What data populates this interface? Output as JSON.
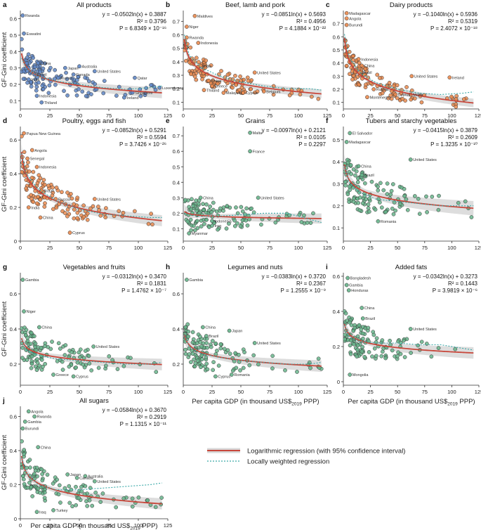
{
  "figure": {
    "ylabel": "GF-Gini coefficient",
    "xlabel_parts": [
      "Per capita GDP (in thousand US$",
      "2019",
      " PPP)"
    ],
    "legend": [
      {
        "label": "Logarithmic regression (with 95% confidence interval)",
        "color": "#c8473b"
      },
      {
        "label": "Locally weighted regression",
        "color": "#3aa9a8"
      }
    ]
  },
  "colors": {
    "orange": "#e9894f",
    "blue": "#5f86c4",
    "green": "#67b48b",
    "log_line": "#c8473b",
    "loess": "#3aa9a8",
    "band": "#d7d7d7"
  },
  "chart_data": [
    {
      "panel": "a",
      "title": "All products",
      "type": "scatter",
      "color": "blue",
      "x": [
        0,
        25,
        50,
        75,
        100,
        125
      ],
      "xtick_labels": [
        "0",
        "25",
        "50",
        "75",
        "100",
        "125"
      ],
      "xlim": [
        0,
        125
      ],
      "yticks": [
        0.1,
        0.2,
        0.3,
        0.4,
        0.5,
        0.6
      ],
      "ytick_labels": [
        "0.1",
        "0.2",
        "0.3",
        "0.4",
        "0.5",
        "0.6"
      ],
      "ylim": [
        0.05,
        0.65
      ],
      "a": -0.0502,
      "b": 0.3887,
      "eq": "y = −0.0502ln(x) + 0.3887",
      "r2": "R² = 0.3796",
      "pval": "P = 6.8349 × 10⁻¹⁶",
      "loess_x": [
        1,
        5,
        15,
        30,
        50,
        70,
        90,
        110,
        120
      ],
      "loess_y": [
        0.36,
        0.3,
        0.25,
        0.22,
        0.2,
        0.18,
        0.17,
        0.18,
        0.19
      ],
      "labeled": [
        {
          "x": 2,
          "y": 0.62,
          "label": "Rwanda"
        },
        {
          "x": 3,
          "y": 0.51,
          "label": "Eswatini"
        },
        {
          "x": 15,
          "y": 0.33,
          "label": "China"
        },
        {
          "x": 12,
          "y": 0.26,
          "label": "Brazil"
        },
        {
          "x": 7,
          "y": 0.23,
          "label": "India"
        },
        {
          "x": 38,
          "y": 0.3,
          "label": "Japan"
        },
        {
          "x": 50,
          "y": 0.31,
          "label": "Australia"
        },
        {
          "x": 63,
          "y": 0.28,
          "label": "United States"
        },
        {
          "x": 45,
          "y": 0.26,
          "label": "Canada"
        },
        {
          "x": 32,
          "y": 0.24,
          "label": "Russia"
        },
        {
          "x": 97,
          "y": 0.24,
          "label": "Qatar"
        },
        {
          "x": 118,
          "y": 0.18,
          "label": "Luxembourg"
        },
        {
          "x": 95,
          "y": 0.15,
          "label": "Singapore"
        },
        {
          "x": 88,
          "y": 0.12,
          "label": "Ireland"
        },
        {
          "x": 14,
          "y": 0.13,
          "label": "Indonesia"
        },
        {
          "x": 18,
          "y": 0.09,
          "label": "Thiland"
        }
      ]
    },
    {
      "panel": "b",
      "title": "Beef, lamb and pork",
      "type": "scatter",
      "color": "orange",
      "x": [
        0,
        25,
        50,
        75,
        100,
        125
      ],
      "xtick_labels": [
        "0",
        "25",
        "50",
        "75",
        "100",
        "125"
      ],
      "xlim": [
        0,
        125
      ],
      "yticks": [
        0.1,
        0.2,
        0.3,
        0.4,
        0.5,
        0.6,
        0.7
      ],
      "ytick_labels": [
        "0.1",
        "0.2",
        "0.3",
        "0.4",
        "0.5",
        "0.6",
        "0.7"
      ],
      "ylim": [
        0.05,
        0.78
      ],
      "a": -0.0851,
      "b": 0.5693,
      "eq": "y = −0.0851ln(x) + 0.5693",
      "r2": "R² = 0.4956",
      "pval": "P = 4.1884 × 10⁻²²",
      "loess_x": [
        1,
        5,
        15,
        30,
        50,
        70,
        90,
        110,
        120
      ],
      "loess_y": [
        0.6,
        0.45,
        0.36,
        0.3,
        0.25,
        0.22,
        0.2,
        0.2,
        0.19
      ],
      "labeled": [
        {
          "x": 10,
          "y": 0.74,
          "label": "Maldives"
        },
        {
          "x": 3,
          "y": 0.66,
          "label": "Niger"
        },
        {
          "x": 3,
          "y": 0.58,
          "label": "Rwanda"
        },
        {
          "x": 13,
          "y": 0.54,
          "label": "Indonesia"
        },
        {
          "x": 15,
          "y": 0.37,
          "label": "India"
        },
        {
          "x": 62,
          "y": 0.32,
          "label": "United States"
        },
        {
          "x": 22,
          "y": 0.26,
          "label": "China"
        },
        {
          "x": 25,
          "y": 0.22,
          "label": "Greece"
        },
        {
          "x": 18,
          "y": 0.19,
          "label": "Thiland"
        },
        {
          "x": 35,
          "y": 0.17,
          "label": "Malaysia"
        },
        {
          "x": 52,
          "y": 0.17,
          "label": "Cyprus"
        },
        {
          "x": 70,
          "y": 0.18,
          "label": "Belgium"
        }
      ]
    },
    {
      "panel": "c",
      "title": "Dairy products",
      "type": "scatter",
      "color": "orange",
      "x": [
        0,
        25,
        50,
        75,
        100,
        125
      ],
      "xtick_labels": [
        "0",
        "25",
        "50",
        "75",
        "100",
        "125"
      ],
      "xlim": [
        0,
        125
      ],
      "yticks": [
        0.1,
        0.2,
        0.3,
        0.4,
        0.5,
        0.6,
        0.7
      ],
      "ytick_labels": [
        "0.1",
        "0.2",
        "0.3",
        "0.4",
        "0.5",
        "0.6",
        "0.7"
      ],
      "ylim": [
        0.05,
        0.8
      ],
      "a": -0.104,
      "b": 0.5936,
      "eq": "y = −0.1040ln(x) + 0.5936",
      "r2": "R² = 0.5319",
      "pval": "P = 2.4072 × 10⁻¹⁸",
      "loess_x": [
        1,
        5,
        15,
        30,
        50,
        70,
        90,
        110,
        120
      ],
      "loess_y": [
        0.62,
        0.45,
        0.33,
        0.25,
        0.2,
        0.17,
        0.16,
        0.17,
        0.18
      ],
      "labeled": [
        {
          "x": 3,
          "y": 0.78,
          "label": "Madagascar"
        },
        {
          "x": 3,
          "y": 0.74,
          "label": "Angola"
        },
        {
          "x": 3,
          "y": 0.69,
          "label": "Burundi"
        },
        {
          "x": 14,
          "y": 0.43,
          "label": "Indonesia"
        },
        {
          "x": 17,
          "y": 0.38,
          "label": "China"
        },
        {
          "x": 15,
          "y": 0.33,
          "label": "Brazil"
        },
        {
          "x": 63,
          "y": 0.3,
          "label": "United States"
        },
        {
          "x": 98,
          "y": 0.29,
          "label": "Ireland"
        },
        {
          "x": 28,
          "y": 0.2,
          "label": "Russia"
        },
        {
          "x": 48,
          "y": 0.16,
          "label": "Cyprus"
        },
        {
          "x": 62,
          "y": 0.16,
          "label": "Malta"
        },
        {
          "x": 22,
          "y": 0.14,
          "label": "Montenegro"
        }
      ]
    },
    {
      "panel": "d",
      "title": "Poultry, eggs and fish",
      "type": "scatter",
      "color": "orange",
      "x": [
        0,
        25,
        50,
        75,
        100,
        125
      ],
      "xtick_labels": [
        "0",
        "25",
        "50",
        "75",
        "100",
        "125"
      ],
      "xlim": [
        0,
        125
      ],
      "yticks": [
        0,
        0.2,
        0.4,
        0.6
      ],
      "ytick_labels": [
        "0",
        "0.2",
        "0.4",
        "0.6"
      ],
      "ylim": [
        0,
        0.68
      ],
      "a": -0.0852,
      "b": 0.5291,
      "eq": "y = −0.0852ln(x) + 0.5291",
      "r2": "R² = 0.5594",
      "pval": "P = 3.7426 × 10⁻²⁶",
      "loess_x": [
        1,
        5,
        15,
        30,
        50,
        70,
        90,
        110,
        120
      ],
      "loess_y": [
        0.52,
        0.4,
        0.31,
        0.24,
        0.19,
        0.16,
        0.15,
        0.14,
        0.14
      ],
      "labeled": [
        {
          "x": 3,
          "y": 0.64,
          "label": "Papua New Guinea"
        },
        {
          "x": 10,
          "y": 0.54,
          "label": "Angola"
        },
        {
          "x": 6,
          "y": 0.49,
          "label": "Senegal"
        },
        {
          "x": 14,
          "y": 0.44,
          "label": "Indonesia"
        },
        {
          "x": 18,
          "y": 0.3,
          "label": "Brazil"
        },
        {
          "x": 30,
          "y": 0.25,
          "label": "Russia"
        },
        {
          "x": 63,
          "y": 0.25,
          "label": "United States"
        },
        {
          "x": 7,
          "y": 0.2,
          "label": "India"
        },
        {
          "x": 17,
          "y": 0.14,
          "label": "China"
        },
        {
          "x": 42,
          "y": 0.05,
          "label": "Cyprus"
        }
      ]
    },
    {
      "panel": "e",
      "title": "Grains",
      "type": "scatter",
      "color": "green",
      "x": [
        0,
        25,
        50,
        75,
        100,
        125
      ],
      "xtick_labels": [
        "0",
        "25",
        "50",
        "75",
        "100",
        "125"
      ],
      "xlim": [
        0,
        125
      ],
      "yticks": [
        0.1,
        0.2,
        0.3,
        0.4,
        0.5,
        0.6,
        0.7
      ],
      "ytick_labels": [
        "0.1",
        "0.2",
        "0.3",
        "0.4",
        "0.5",
        "0.6",
        "0.7"
      ],
      "ylim": [
        0.02,
        0.76
      ],
      "a": -0.0097,
      "b": 0.2121,
      "eq": "y = −0.0097ln(x) + 0.2121",
      "r2": "R² = 0.0105",
      "pval": "P = 0.2297",
      "loess_x": [
        1,
        5,
        15,
        30,
        50,
        70,
        90,
        110,
        120
      ],
      "loess_y": [
        0.2,
        0.19,
        0.18,
        0.18,
        0.19,
        0.2,
        0.2,
        0.16,
        0.14
      ],
      "labeled": [
        {
          "x": 58,
          "y": 0.72,
          "label": "Malta"
        },
        {
          "x": 58,
          "y": 0.6,
          "label": "France"
        },
        {
          "x": 15,
          "y": 0.3,
          "label": "China"
        },
        {
          "x": 65,
          "y": 0.3,
          "label": "United States"
        },
        {
          "x": 25,
          "y": 0.15,
          "label": "Indonesia"
        },
        {
          "x": 25,
          "y": 0.12,
          "label": "Iraq"
        },
        {
          "x": 5,
          "y": 0.07,
          "label": "Myanmar"
        }
      ]
    },
    {
      "panel": "f",
      "title": "Tubers and starchy vegetables",
      "type": "scatter",
      "color": "green",
      "x": [
        0,
        25,
        50,
        75,
        100,
        125
      ],
      "xtick_labels": [
        "0",
        "25",
        "50",
        "75",
        "100",
        "125"
      ],
      "xlim": [
        0,
        125
      ],
      "yticks": [
        0.1,
        0.2,
        0.3,
        0.4,
        0.5
      ],
      "ytick_labels": [
        "0.1",
        "0.2",
        "0.3",
        "0.4",
        "0.5"
      ],
      "ylim": [
        0.04,
        0.56
      ],
      "a": -0.0415,
      "b": 0.3879,
      "eq": "y = −0.0415ln(x) + 0.3879",
      "r2": "R² = 0.2609",
      "pval": "P = 1.3235 × 10⁻¹⁰",
      "loess_x": [
        1,
        5,
        15,
        30,
        50,
        70,
        90,
        110,
        120
      ],
      "loess_y": [
        0.38,
        0.31,
        0.26,
        0.23,
        0.22,
        0.21,
        0.2,
        0.2,
        0.2
      ],
      "labeled": [
        {
          "x": 6,
          "y": 0.53,
          "label": "El Salvador"
        },
        {
          "x": 3,
          "y": 0.49,
          "label": "Madagascar"
        },
        {
          "x": 14,
          "y": 0.38,
          "label": "China"
        },
        {
          "x": 17,
          "y": 0.34,
          "label": "Brazil"
        },
        {
          "x": 62,
          "y": 0.41,
          "label": "United States"
        },
        {
          "x": 32,
          "y": 0.13,
          "label": "Romania"
        }
      ]
    },
    {
      "panel": "g",
      "title": "Vegetables and fruits",
      "type": "scatter",
      "color": "green",
      "x": [
        0,
        25,
        50,
        75,
        100,
        125
      ],
      "xtick_labels": [
        "0",
        "25",
        "50",
        "75",
        "100",
        "125"
      ],
      "xlim": [
        0,
        125
      ],
      "yticks": [
        0.2,
        0.4,
        0.6
      ],
      "ytick_labels": [
        "0.2",
        "0.4",
        "0.6"
      ],
      "ylim": [
        0.08,
        0.72
      ],
      "a": -0.0312,
      "b": 0.347,
      "eq": "y = −0.0312ln(x) + 0.3470",
      "r2": "R² = 0.1831",
      "pval": "P = 1.4762 × 10⁻⁷",
      "loess_x": [
        1,
        5,
        15,
        30,
        50,
        70,
        90,
        110,
        120
      ],
      "loess_y": [
        0.34,
        0.28,
        0.25,
        0.23,
        0.22,
        0.21,
        0.2,
        0.2,
        0.21
      ],
      "labeled": [
        {
          "x": 2,
          "y": 0.68,
          "label": "Gambia"
        },
        {
          "x": 3,
          "y": 0.5,
          "label": "Niger"
        },
        {
          "x": 16,
          "y": 0.41,
          "label": "China"
        },
        {
          "x": 62,
          "y": 0.3,
          "label": "United States"
        },
        {
          "x": 28,
          "y": 0.14,
          "label": "Greece"
        },
        {
          "x": 45,
          "y": 0.13,
          "label": "Cyprus"
        }
      ]
    },
    {
      "panel": "h",
      "title": "Legumes and nuts",
      "type": "scatter",
      "color": "green",
      "x": [
        0,
        25,
        50,
        75,
        100,
        125
      ],
      "xtick_labels": [
        "0",
        "25",
        "50",
        "75",
        "100",
        "125"
      ],
      "xlim": [
        0,
        125
      ],
      "yticks": [
        0.2,
        0.4,
        0.6
      ],
      "ytick_labels": [
        "0.2",
        "0.4",
        "0.6"
      ],
      "ylim": [
        0.08,
        0.72
      ],
      "a": -0.0383,
      "b": 0.372,
      "eq": "y = −0.0383ln(x) + 0.3720",
      "r2": "R² = 0.2367",
      "pval": "P = 1.2555 × 10⁻⁹",
      "loess_x": [
        1,
        5,
        15,
        30,
        50,
        70,
        90,
        110,
        120
      ],
      "loess_y": [
        0.37,
        0.3,
        0.26,
        0.24,
        0.22,
        0.21,
        0.2,
        0.2,
        0.21
      ],
      "labeled": [
        {
          "x": 3,
          "y": 0.68,
          "label": "Gambia"
        },
        {
          "x": 17,
          "y": 0.41,
          "label": "China"
        },
        {
          "x": 20,
          "y": 0.36,
          "label": "Brazil"
        },
        {
          "x": 40,
          "y": 0.39,
          "label": "Japan"
        },
        {
          "x": 62,
          "y": 0.32,
          "label": "United States"
        },
        {
          "x": 28,
          "y": 0.13,
          "label": "Cyprus"
        },
        {
          "x": 42,
          "y": 0.14,
          "label": "Romania"
        }
      ]
    },
    {
      "panel": "i",
      "title": "Added fats",
      "type": "scatter",
      "color": "green",
      "x": [
        0,
        25,
        50,
        75,
        100,
        125
      ],
      "xtick_labels": [
        "0",
        "25",
        "50",
        "75",
        "100",
        "125"
      ],
      "xlim": [
        0,
        125
      ],
      "yticks": [
        0,
        0.2,
        0.4,
        0.6
      ],
      "ytick_labels": [
        "0",
        "0.2",
        "0.4",
        "0.6"
      ],
      "ylim": [
        -0.02,
        0.62
      ],
      "a": -0.0342,
      "b": 0.3273,
      "eq": "y = −0.0342ln(x) + 0.3273",
      "r2": "R² = 0.1443",
      "pval": "P = 3.9819 × 10⁻⁶",
      "loess_x": [
        1,
        5,
        15,
        30,
        50,
        70,
        90,
        110,
        120
      ],
      "loess_y": [
        0.32,
        0.26,
        0.23,
        0.22,
        0.22,
        0.21,
        0.21,
        0.19,
        0.18
      ],
      "labeled": [
        {
          "x": 4,
          "y": 0.59,
          "label": "Bangladesh"
        },
        {
          "x": 3,
          "y": 0.55,
          "label": "Gambia"
        },
        {
          "x": 5,
          "y": 0.52,
          "label": "Honduras"
        },
        {
          "x": 17,
          "y": 0.42,
          "label": "China"
        },
        {
          "x": 18,
          "y": 0.36,
          "label": "Brazil"
        },
        {
          "x": 62,
          "y": 0.3,
          "label": "United States"
        },
        {
          "x": 6,
          "y": 0.04,
          "label": "Mongolia"
        }
      ]
    },
    {
      "panel": "j",
      "title": "All sugars",
      "type": "scatter",
      "color": "green",
      "x": [
        0,
        25,
        50,
        75,
        100,
        125
      ],
      "xtick_labels": [
        "0",
        "25",
        "50",
        "75",
        "100",
        "125"
      ],
      "xlim": [
        0,
        125
      ],
      "yticks": [
        0,
        0.2,
        0.4,
        0.6
      ],
      "ytick_labels": [
        "0",
        "0.2",
        "0.4",
        "0.6"
      ],
      "ylim": [
        0,
        0.66
      ],
      "a": -0.0584,
      "b": 0.367,
      "eq": "y = −0.0584ln(x) + 0.3670",
      "r2": "R² = 0.2919",
      "pval": "P = 1.1315 × 10⁻¹¹",
      "loess_x": [
        1,
        5,
        15,
        30,
        50,
        70,
        90,
        110,
        120
      ],
      "loess_y": [
        0.36,
        0.27,
        0.2,
        0.17,
        0.17,
        0.18,
        0.19,
        0.2,
        0.21
      ],
      "labeled": [
        {
          "x": 7,
          "y": 0.63,
          "label": "Angola"
        },
        {
          "x": 12,
          "y": 0.6,
          "label": "Rwanda"
        },
        {
          "x": 4,
          "y": 0.57,
          "label": "Gambia"
        },
        {
          "x": 2,
          "y": 0.53,
          "label": "Burundi"
        },
        {
          "x": 15,
          "y": 0.42,
          "label": "China"
        },
        {
          "x": 40,
          "y": 0.26,
          "label": "Japan"
        },
        {
          "x": 48,
          "y": 0.24,
          "label": "Canada"
        },
        {
          "x": 55,
          "y": 0.25,
          "label": "Australia"
        },
        {
          "x": 63,
          "y": 0.22,
          "label": "United States"
        },
        {
          "x": 14,
          "y": 0.04,
          "label": "Iraq"
        },
        {
          "x": 28,
          "y": 0.05,
          "label": "Turkey"
        }
      ]
    }
  ]
}
